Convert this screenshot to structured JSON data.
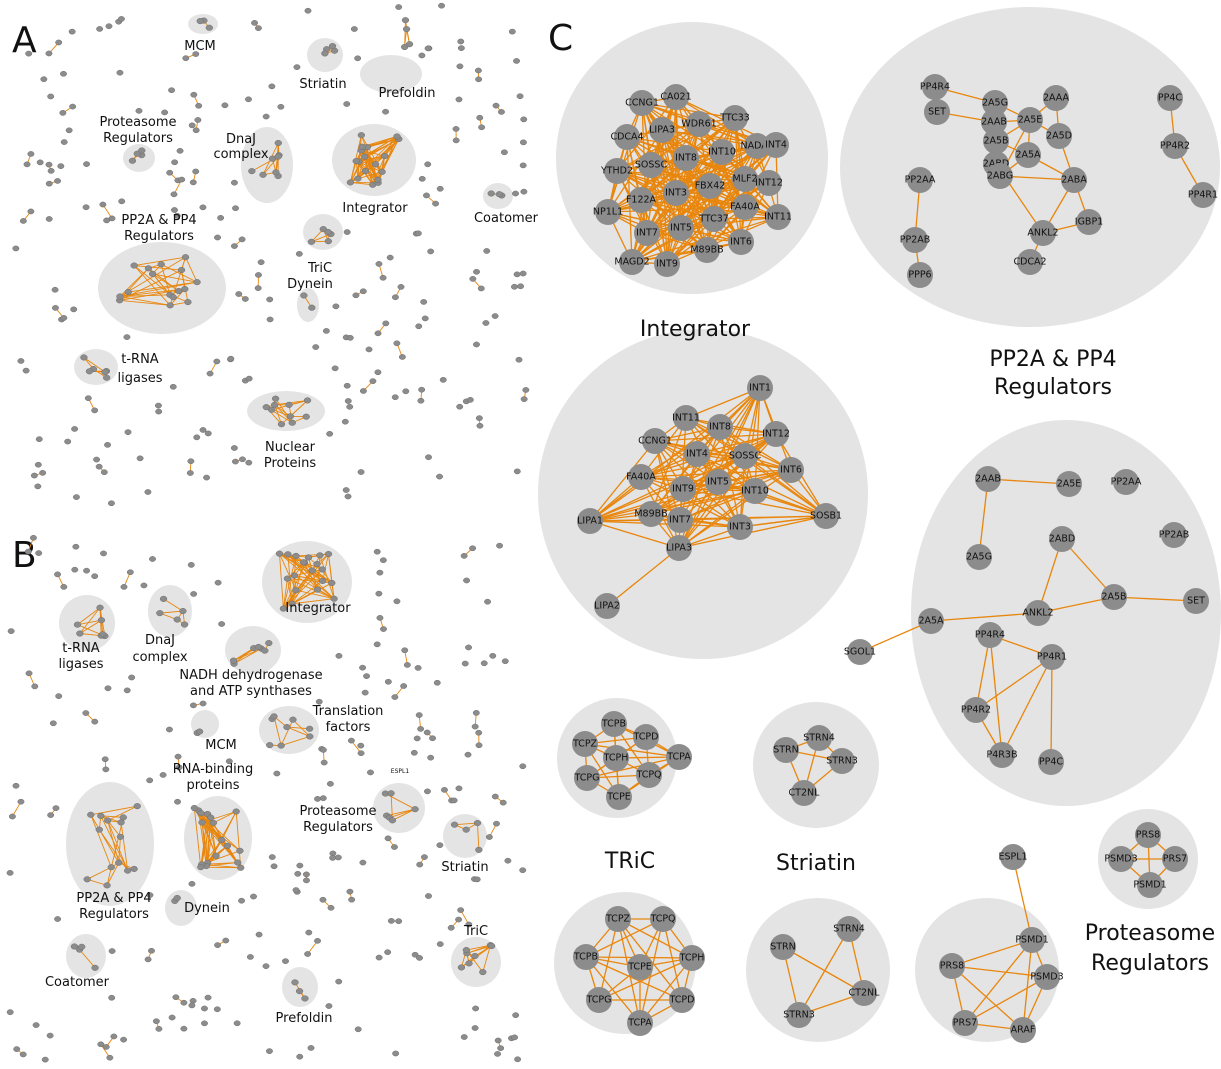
{
  "panels": {
    "a": "A",
    "b": "B",
    "c": "C"
  },
  "panel_a": {
    "labels": [
      "MCM",
      "Striatin",
      "Prefoldin",
      "Proteasome",
      "Regulators",
      "DnaJ",
      "complex",
      "Integrator",
      "Coatomer",
      "PP2A & PP4",
      "Regulators",
      "TriC",
      "Dynein",
      "t-RNA",
      "ligases",
      "Nuclear",
      "Proteins"
    ]
  },
  "panel_b": {
    "labels": [
      "Integrator",
      "t-RNA",
      "ligases",
      "DnaJ",
      "complex",
      "NADH dehydrogenase",
      "and ATP synthases",
      "Translation",
      "factors",
      "MCM",
      "RNA-binding",
      "proteins",
      "Proteasome",
      "Regulators",
      "Striatin",
      "PP2A & PP4",
      "Regulators",
      "Dynein",
      "TriC",
      "Coatomer",
      "Prefoldin"
    ],
    "espl1_label": "ESPL1"
  },
  "panel_c": {
    "titles": {
      "integrator": "Integrator",
      "pp2a_line1": "PP2A & PP4",
      "pp2a_line2": "Regulators",
      "tric": "TRiC",
      "striatin": "Striatin",
      "proteasome_line1": "Proteasome",
      "proteasome_line2": "Regulators"
    },
    "integrator_top": [
      "CCNG1",
      "CA021",
      "CDCA4",
      "LIPA3",
      "WDR61",
      "TTC33",
      "YTHD2",
      "SOSSC",
      "INT8",
      "INT10",
      "NADAP",
      "NP1L1",
      "F122A",
      "INT3",
      "FBX42",
      "MLF2",
      "INT4",
      "INT7",
      "INT5",
      "TTC37",
      "INT12",
      "MAGD2",
      "INT9",
      "M89BB",
      "FA40A",
      "INT11",
      "INT6"
    ],
    "pp2a_top": [
      "PP4R4",
      "2A5G",
      "2A5E",
      "2AAA",
      "PP4C",
      "SET",
      "2AAB",
      "2A5B",
      "2A5D",
      "PP4R2",
      "2ABD",
      "2A5A",
      "2ABG",
      "2ABA",
      "PP4R1",
      "PP2AA",
      "ANKL2",
      "IGBP1",
      "PP2AB",
      "CDCA2",
      "PPP6"
    ],
    "integrator_mid": [
      "INT1",
      "INT11",
      "INT8",
      "INT12",
      "CCNG1",
      "INT4",
      "SOSSC",
      "INT6",
      "FA40A",
      "INT9",
      "INT5",
      "INT10",
      "M89BB",
      "LIPA1",
      "INT7",
      "INT3",
      "SOSB1",
      "LIPA3",
      "LIPA2"
    ],
    "pp2a_mid": [
      "2AAB",
      "2A5E",
      "PP2AA",
      "PP2AB",
      "2ABD",
      "2A5G",
      "ANKL2",
      "2A5B",
      "SET",
      "2A5A",
      "SGOL1",
      "PP4R4",
      "PP4R1",
      "PP4R2",
      "P4R3B",
      "PP4C"
    ],
    "tric_top": [
      "TCPB",
      "TCPZ",
      "TCPD",
      "TCPH",
      "TCPA",
      "TCPG",
      "TCPQ",
      "TCPE"
    ],
    "striatin_top": [
      "STRN4",
      "STRN",
      "STRN3",
      "CT2NL"
    ],
    "proteasome_top": [
      "PRS8",
      "PSMD3",
      "PRS7",
      "PSMD1"
    ],
    "tric_bot": [
      "TCPZ",
      "TCPQ",
      "TCPB",
      "TCPE",
      "TCPH",
      "TCPG",
      "TCPD",
      "TCPA"
    ],
    "striatin_bot": [
      "STRN",
      "STRN4",
      "CT2NL",
      "STRN3"
    ],
    "proteasome_bot": [
      "ESPL1",
      "PSMD1",
      "PRS8",
      "PSMD3",
      "PRS7",
      "ARAF"
    ]
  },
  "colors": {
    "edge": "#e8860d",
    "node": "#8c8c8c",
    "bubble": "#e4e4e4"
  }
}
